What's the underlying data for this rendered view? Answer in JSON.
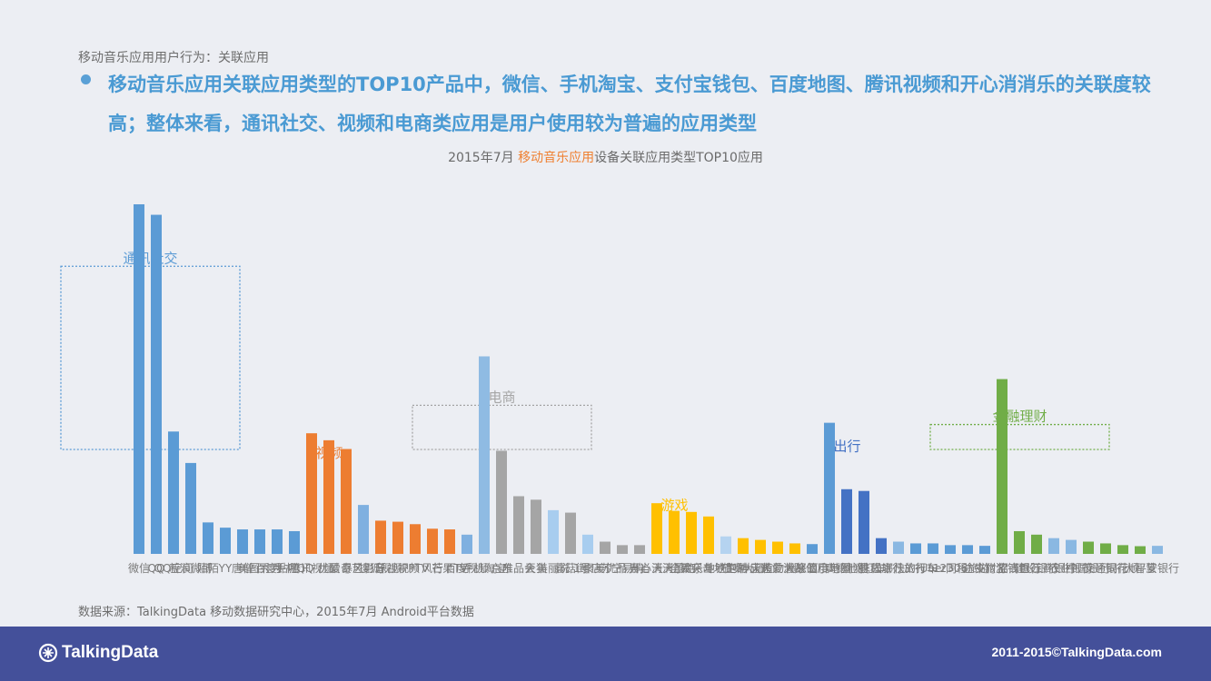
{
  "header": {
    "subtitle": "移动音乐应用用户行为：关联应用",
    "headline": "移动音乐应用关联应用类型的TOP10产品中，微信、手机淘宝、支付宝钱包、百度地图、腾讯视频和开心消消乐的关联度较高；整体来看，通讯社交、视频和电商类应用是用户使用较为普遍的应用类型"
  },
  "chart_title": {
    "prefix": "2015年7月 ",
    "highlight": "移动音乐应用",
    "suffix": "设备关联应用类型TOP10应用"
  },
  "chart_data": {
    "type": "bar",
    "ylim": [
      0,
      100
    ],
    "groups": [
      {
        "name": "通讯社交",
        "color": "#5b9bd5",
        "top_color": "#5b9bd5",
        "fade_color": "#8ab8e2",
        "categories": [
          "微信",
          "QQ",
          "QQ空间",
          "新浪微博",
          "陌陌",
          "YY",
          "唐僧",
          "美图秀秀",
          "百度贴吧",
          "手机QQ"
        ],
        "values": [
          100,
          97,
          35,
          26,
          9,
          7.5,
          7,
          7,
          7,
          6.5
        ]
      },
      {
        "name": "视频",
        "color": "#ed7d31",
        "top_color": "#ed7d31",
        "fade_color": "#7fb0e0",
        "categories": [
          "腾讯视频",
          "优酷",
          "爱奇艺",
          "暴风影音",
          "搜狐视频",
          "乐视视频",
          "PPTV",
          "风行",
          "芒果TV",
          "百度视频"
        ],
        "values": [
          34.5,
          32.5,
          30,
          14,
          9.5,
          9.2,
          8.5,
          7.2,
          7,
          5.5
        ]
      },
      {
        "name": "电商",
        "color": "#a5a5a5",
        "top_color": "#8fbbe3",
        "fade_color": "#a8cdef",
        "categories": [
          "手机淘宝",
          "京东",
          "唯品会",
          "天猫",
          "美丽说",
          "蘑菇街",
          "1号店",
          "聚美优品",
          "苏宁易购",
          "当当"
        ],
        "values": [
          56.5,
          29.5,
          16.5,
          15.5,
          12.5,
          11.8,
          5.5,
          3.5,
          2.5,
          2.5
        ]
      },
      {
        "name": "游戏",
        "color": "#ffc000",
        "top_color": "#ffc000",
        "fade_color": "#b5d3f0",
        "categories": [
          "开心消消乐",
          "天天酷跑",
          "全民突击",
          "欢乐斗地主",
          "地铁跑酷",
          "节奏大师",
          "神庙逃亡",
          "天天爱消除",
          "植物大战僵尸",
          "愤怒的小鸟"
        ],
        "values": [
          14.5,
          12.3,
          12,
          10.7,
          5,
          4.5,
          4,
          3.5,
          3,
          2.8
        ]
      },
      {
        "name": "出行",
        "color": "#4472c4",
        "top_color": "#5b9bd5",
        "fade_color": "#8ab8e2",
        "categories": [
          "百度地图",
          "高德地图",
          "滴滴打车",
          "携程旅行",
          "去哪儿旅行",
          "快的打车",
          "Uber",
          "12306",
          "同程旅游",
          "途牛旅游"
        ],
        "values": [
          37.5,
          18.5,
          18,
          4.5,
          3.5,
          3,
          3,
          2.5,
          2.5,
          2.3
        ]
      },
      {
        "name": "金融理财",
        "color": "#70ad47",
        "top_color": "#70ad47",
        "fade_color": "#8ab8e2",
        "categories": [
          "支付宝钱包",
          "招商银行",
          "建设银行",
          "工商银行",
          "农业银行",
          "中国银行",
          "交通银行",
          "同花顺",
          "大智慧",
          "平安银行"
        ],
        "values": [
          50,
          6.5,
          5.5,
          4.5,
          4,
          3.5,
          3,
          2.5,
          2.2,
          2.3
        ]
      }
    ]
  },
  "source": "数据来源：TalkingData 移动数据研究中心，2015年7月 Android平台数据",
  "footer": {
    "logo_text": "TalkingData",
    "copyright": "2011-2015©TalkingData.com"
  }
}
